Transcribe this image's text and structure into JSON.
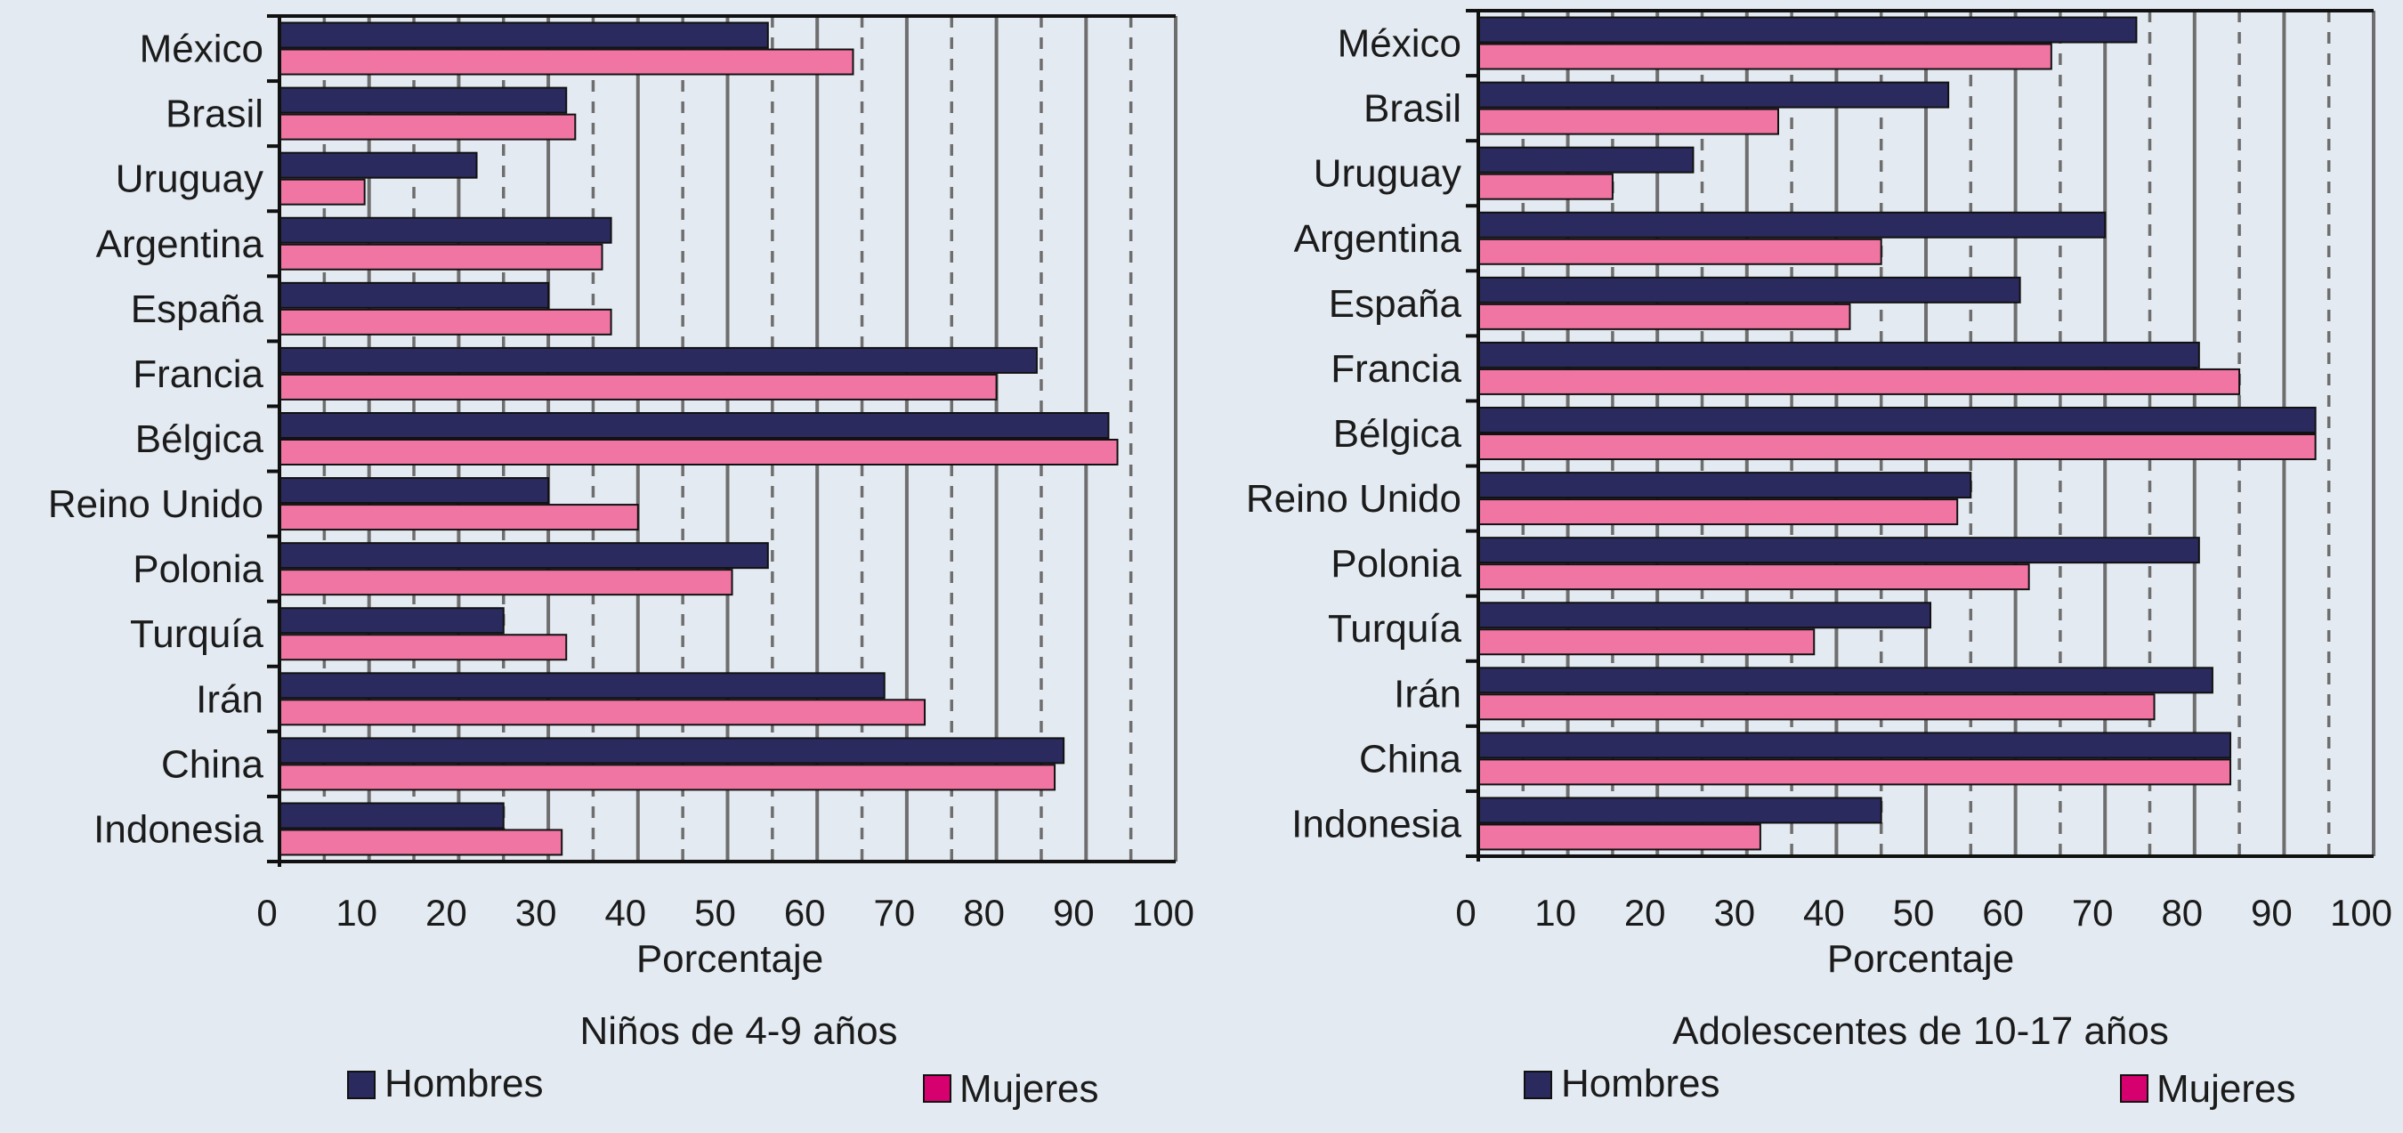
{
  "colors": {
    "background": "#e3eaf1",
    "hombres": "#2b2a5e",
    "mujeres": "#f075a3",
    "legend_mujeres": "#d6006e",
    "grid_solid": "#6e6e6e",
    "grid_dashed": "#6e6e6e"
  },
  "chart_data": [
    {
      "type": "bar",
      "orientation": "horizontal",
      "title": "Niños de 4-9 años",
      "xlabel": "Porcentaje",
      "ylabel": "",
      "xlim": [
        0,
        100
      ],
      "xticks": [
        "0",
        "10",
        "20",
        "30",
        "40",
        "50",
        "60",
        "70",
        "80",
        "90",
        "100"
      ],
      "grid": "vertical solid and dashed lines",
      "legend_position": "bottom",
      "categories": [
        "México",
        "Brasil",
        "Uruguay",
        "Argentina",
        "España",
        "Francia",
        "Bélgica",
        "Reino Unido",
        "Polonia",
        "Turquía",
        "Irán",
        "China",
        "Indonesia"
      ],
      "series": [
        {
          "name": "Hombres",
          "values": [
            54.5,
            32,
            22,
            37,
            30,
            84.5,
            92.5,
            30,
            54.5,
            25,
            67.5,
            87.5,
            25
          ]
        },
        {
          "name": "Mujeres",
          "values": [
            64,
            33,
            9.5,
            36,
            37,
            80,
            93.5,
            40,
            50.5,
            32,
            72,
            86.5,
            31.5
          ]
        }
      ]
    },
    {
      "type": "bar",
      "orientation": "horizontal",
      "title": "Adolescentes de 10-17 años",
      "xlabel": "Porcentaje",
      "ylabel": "",
      "xlim": [
        0,
        100
      ],
      "xticks": [
        "0",
        "10",
        "20",
        "30",
        "40",
        "50",
        "60",
        "70",
        "80",
        "90",
        "100"
      ],
      "grid": "vertical solid and dashed lines",
      "legend_position": "bottom",
      "categories": [
        "México",
        "Brasil",
        "Uruguay",
        "Argentina",
        "España",
        "Francia",
        "Bélgica",
        "Reino Unido",
        "Polonia",
        "Turquía",
        "Irán",
        "China",
        "Indonesia"
      ],
      "series": [
        {
          "name": "Hombres",
          "values": [
            73.5,
            52.5,
            24,
            70,
            60.5,
            80.5,
            93.5,
            55,
            80.5,
            50.5,
            82,
            84,
            45
          ]
        },
        {
          "name": "Mujeres",
          "values": [
            64,
            33.5,
            15,
            45,
            41.5,
            85,
            93.5,
            53.5,
            61.5,
            37.5,
            75.5,
            84,
            31.5
          ]
        }
      ]
    }
  ]
}
